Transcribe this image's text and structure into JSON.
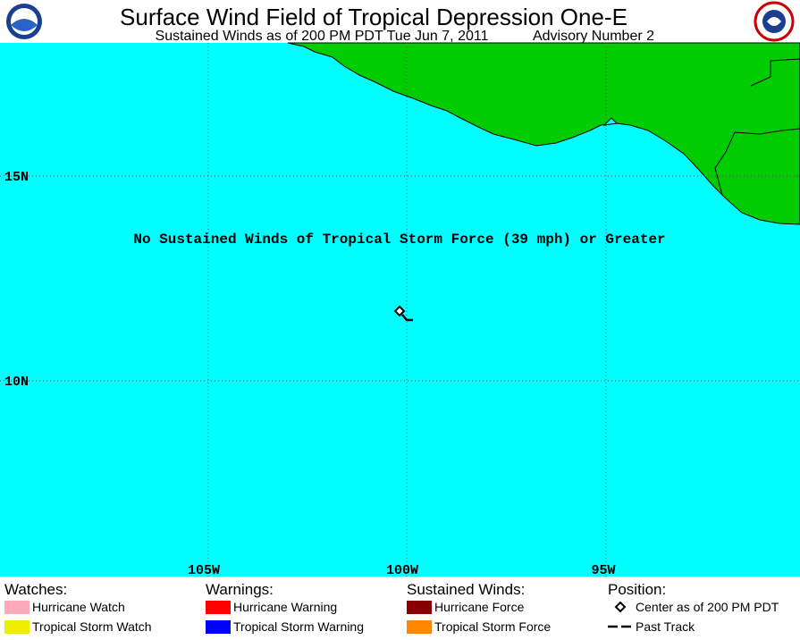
{
  "header": {
    "title": "Surface Wind Field of Tropical Depression One-E",
    "subtitle": "Sustained Winds as of 200 PM PDT Tue Jun 7, 2011",
    "advisory": "Advisory Number 2"
  },
  "map": {
    "latitude_labels": [
      "15N",
      "10N"
    ],
    "longitude_labels": [
      "105W",
      "100W",
      "95W"
    ],
    "message": "No Sustained Winds of Tropical Storm Force (39 mph) or Greater"
  },
  "legend": {
    "sections": [
      {
        "heading": "Watches:",
        "items": [
          "Hurricane Watch",
          "Tropical Storm Watch"
        ]
      },
      {
        "heading": "Warnings:",
        "items": [
          "Hurricane Warning",
          "Tropical Storm Warning"
        ]
      },
      {
        "heading": "Sustained Winds:",
        "items": [
          "Hurricane Force",
          "Tropical Storm Force"
        ]
      },
      {
        "heading": "Position:",
        "items": [
          "Center as of 200 PM PDT",
          "Past Track"
        ]
      }
    ]
  }
}
